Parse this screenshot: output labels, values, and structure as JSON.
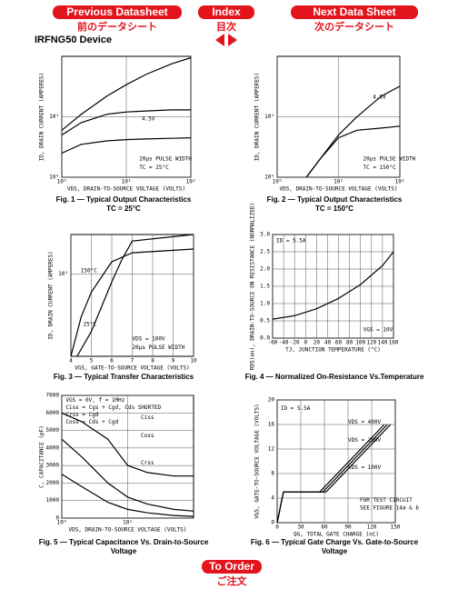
{
  "nav": {
    "prev": "Previous Datasheet",
    "prev_jp": "前のデータシート",
    "index": "Index",
    "index_jp": "目次",
    "next": "Next Data Sheet",
    "next_jp": "次のデータシート",
    "order": "To Order",
    "order_jp": "ご注文"
  },
  "device": "IRFNG50 Device",
  "chart_data": [
    {
      "type": "line",
      "title": "Fig. 1 — Typical Output Characteristics",
      "subtitle": "TC = 25°C",
      "xlabel": "VDS, DRAIN-TO-SOURCE VOLTAGE (VOLTS)",
      "ylabel": "ID, DRAIN CURRENT (AMPERES)",
      "xlog": true,
      "ylog": true,
      "xlim": [
        1,
        100
      ],
      "ylim": [
        1,
        100
      ],
      "xticks": [
        {
          "value": 1,
          "label": "10⁰"
        },
        {
          "value": 10,
          "label": "10¹"
        },
        {
          "value": 100,
          "label": "10²"
        }
      ],
      "yticks": [
        {
          "value": 1,
          "label": "10⁰"
        },
        {
          "value": 10,
          "label": "10¹"
        }
      ],
      "grid": true,
      "annotations": [
        "4.5V",
        "20μs PULSE WIDTH",
        "TC = 25°C"
      ],
      "series": [
        {
          "color": "#000000",
          "x": [
            1,
            2,
            5,
            10,
            20,
            50,
            100
          ],
          "values": [
            6,
            11,
            22,
            34,
            50,
            75,
            95
          ]
        },
        {
          "color": "#000000",
          "x": [
            1,
            2,
            5,
            10,
            20,
            50,
            100
          ],
          "values": [
            5,
            8,
            11,
            12,
            12.5,
            13,
            13
          ]
        },
        {
          "color": "#000000",
          "x": [
            1,
            2,
            5,
            10,
            20,
            50,
            100
          ],
          "values": [
            2.5,
            3.5,
            4,
            4.2,
            4.3,
            4.4,
            4.5
          ]
        }
      ]
    },
    {
      "type": "line",
      "title": "Fig. 2 — Typical Output Characteristics",
      "subtitle": "TC = 150°C",
      "xlabel": "VDS, DRAIN-TO-SOURCE VOLTAGE (VOLTS)",
      "ylabel": "ID, DRAIN CURRENT (AMPERES)",
      "xlog": true,
      "ylog": true,
      "xlim": [
        1,
        100
      ],
      "ylim": [
        1,
        100
      ],
      "xticks": [
        {
          "value": 1,
          "label": "10⁰"
        },
        {
          "value": 10,
          "label": "10¹"
        },
        {
          "value": 100,
          "label": "10²"
        }
      ],
      "yticks": [
        {
          "value": 1,
          "label": "10⁰"
        },
        {
          "value": 10,
          "label": "10¹"
        }
      ],
      "grid": true,
      "annotations": [
        "4.5V",
        "20μs PULSE WIDTH",
        "TC = 150°C"
      ],
      "series": [
        {
          "color": "#000000",
          "x": [
            3,
            5,
            10,
            20,
            50,
            100
          ],
          "values": [
            1,
            2,
            5,
            10,
            22,
            32
          ]
        },
        {
          "color": "#000000",
          "x": [
            3,
            5,
            10,
            20,
            50,
            100
          ],
          "values": [
            1,
            2,
            4.5,
            6,
            6.5,
            7
          ]
        }
      ]
    },
    {
      "type": "line",
      "title": "Fig. 3 — Typical Transfer Characteristics",
      "xlabel": "VGS, GATE-TO-SOURCE VOLTAGE (VOLTS)",
      "ylabel": "ID, DRAIN CURRENT (AMPERES)",
      "xlog": false,
      "ylog": true,
      "xlim": [
        4,
        10
      ],
      "ylim": [
        1,
        30
      ],
      "xticks": [
        4,
        5,
        6,
        7,
        8,
        9,
        10
      ],
      "yticks": [
        {
          "value": 10,
          "label": "10¹"
        }
      ],
      "grid": true,
      "annotations": [
        "150°C",
        "25°C",
        "VDS = 100V",
        "20μs PULSE WIDTH"
      ],
      "series": [
        {
          "color": "#000000",
          "x": [
            4,
            4.5,
            5,
            6,
            7,
            10
          ],
          "values": [
            1,
            3,
            6,
            14,
            18,
            20
          ]
        },
        {
          "color": "#000000",
          "x": [
            4.3,
            5,
            5.5,
            6,
            6.5,
            7,
            10
          ],
          "values": [
            1,
            2,
            4,
            8,
            15,
            25,
            30
          ]
        }
      ]
    },
    {
      "type": "line",
      "title": "Fig. 4 — Normalized On-Resistance Vs.Temperature",
      "xlabel": "TJ, JUNCTION TEMPERATURE (°C)",
      "ylabel": "RDS(on), DRAIN-TO-SOURCE ON RESISTANCE (NORMALIZED)",
      "xlog": false,
      "ylog": false,
      "xlim": [
        -60,
        160
      ],
      "ylim": [
        0,
        3
      ],
      "xticks": [
        -60,
        -40,
        -20,
        0,
        20,
        40,
        60,
        80,
        100,
        120,
        140,
        160
      ],
      "yticks": [
        {
          "value": 0,
          "label": "0.0"
        },
        {
          "value": 0.5,
          "label": "0.5"
        },
        {
          "value": 1,
          "label": "1.0"
        },
        {
          "value": 1.5,
          "label": "1.5"
        },
        {
          "value": 2,
          "label": "2.0"
        },
        {
          "value": 2.5,
          "label": "2.5"
        },
        {
          "value": 3,
          "label": "3.0"
        }
      ],
      "grid": true,
      "annotations": [
        "ID = 5.5A",
        "VGS = 10V"
      ],
      "series": [
        {
          "color": "#000000",
          "x": [
            -60,
            -20,
            20,
            60,
            100,
            140,
            160
          ],
          "values": [
            0.55,
            0.65,
            0.85,
            1.15,
            1.55,
            2.1,
            2.5
          ]
        }
      ]
    },
    {
      "type": "line",
      "title": "Fig. 5 — Typical Capacitance Vs. Drain-to-Source Voltage",
      "xlabel": "VDS, DRAIN-TO-SOURCE VOLTAGE (VOLTS)",
      "ylabel": "C, CAPACITANCE (pF)",
      "xlog": true,
      "ylog": false,
      "xlim": [
        1,
        100
      ],
      "ylim": [
        0,
        7000
      ],
      "xticks": [
        {
          "value": 1,
          "label": "10⁰"
        },
        {
          "value": 10,
          "label": "10¹"
        }
      ],
      "yticks": [
        0,
        1000,
        2000,
        3000,
        4000,
        5000,
        6000,
        7000
      ],
      "grid": true,
      "annotations": [
        "VGS = 0V, f = 1MHz",
        "Ciss = Cgs + Cgd, Cds SHORTED",
        "Crss = Cgd",
        "Coss = Cds + Cgd"
      ],
      "series": [
        {
          "name": "Ciss",
          "color": "#000000",
          "x": [
            1,
            2,
            5,
            10,
            20,
            50,
            100
          ],
          "values": [
            6000,
            5500,
            4500,
            3000,
            2600,
            2400,
            2400
          ]
        },
        {
          "name": "Coss",
          "color": "#000000",
          "x": [
            1,
            2,
            5,
            10,
            20,
            50,
            100
          ],
          "values": [
            4500,
            3500,
            2000,
            1200,
            800,
            500,
            400
          ]
        },
        {
          "name": "Crss",
          "color": "#000000",
          "x": [
            1,
            2,
            5,
            10,
            20,
            50,
            100
          ],
          "values": [
            2500,
            1800,
            900,
            500,
            300,
            150,
            100
          ]
        }
      ]
    },
    {
      "type": "line",
      "title": "Fig. 6 — Typical Gate Charge Vs. Gate-to-Source Voltage",
      "xlabel": "QG, TOTAL GATE CHARGE (nC)",
      "ylabel": "VGS, GATE-TO-SOURCE VOLTAGE (VOLTS)",
      "xlog": false,
      "ylog": false,
      "xlim": [
        0,
        150
      ],
      "ylim": [
        0,
        20
      ],
      "xticks": [
        0,
        30,
        60,
        90,
        120,
        150
      ],
      "yticks": [
        0,
        4,
        8,
        12,
        16,
        20
      ],
      "grid": true,
      "annotations": [
        "ID = 5.5A",
        "FOR TEST CIRCUIT",
        "SEE FIGURE 14a & b"
      ],
      "series": [
        {
          "name": "VDS = 400V",
          "color": "#000000",
          "x": [
            0,
            8,
            62,
            144
          ],
          "values": [
            0,
            5,
            5,
            16
          ]
        },
        {
          "name": "VDS = 200V",
          "color": "#000000",
          "x": [
            0,
            8,
            58,
            140
          ],
          "values": [
            0,
            5,
            5,
            16
          ]
        },
        {
          "name": "VDS = 100V",
          "color": "#000000",
          "x": [
            0,
            8,
            54,
            136
          ],
          "values": [
            0,
            5,
            5,
            16
          ]
        }
      ]
    }
  ]
}
